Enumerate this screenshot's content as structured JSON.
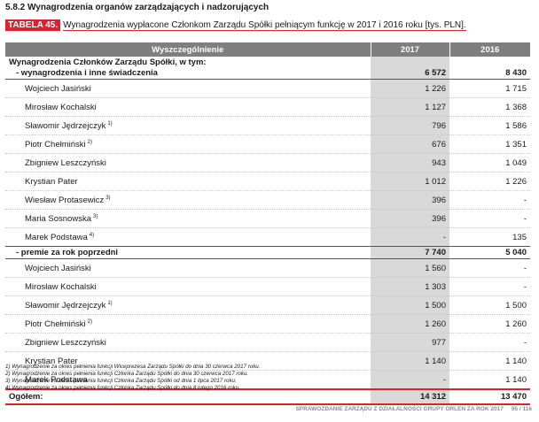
{
  "section_title": "5.8.2 Wynagrodzenia organów zarządzających i nadzorujących",
  "caption": {
    "tag": "TABELA 45.",
    "text": "Wynagrodzenia wypłacone Członkom Zarządu Spółki pełniącym funkcję w 2017 i 2016 roku [tys. PLN]."
  },
  "table": {
    "headers": [
      "Wyszczególnienie",
      "2017",
      "2016"
    ],
    "section_header": "Wynagrodzenia Członków Zarządu Spółki, w tym:",
    "group1": {
      "label": "- wynagrodzenia i inne świadczenia",
      "v2017": "6 572",
      "v2016": "8 430"
    },
    "group1_rows": [
      {
        "name": "Wojciech Jasiński",
        "sup": "",
        "v2017": "1 226",
        "v2016": "1 715"
      },
      {
        "name": "Mirosław Kochalski",
        "sup": "",
        "v2017": "1 127",
        "v2016": "1 368"
      },
      {
        "name": "Sławomir Jędrzejczyk",
        "sup": "1)",
        "v2017": "796",
        "v2016": "1 586"
      },
      {
        "name": "Piotr Chełmiński",
        "sup": "2)",
        "v2017": "676",
        "v2016": "1 351"
      },
      {
        "name": "Zbigniew Leszczyński",
        "sup": "",
        "v2017": "943",
        "v2016": "1 049"
      },
      {
        "name": "Krystian Pater",
        "sup": "",
        "v2017": "1 012",
        "v2016": "1 226"
      },
      {
        "name": "Wiesław Protasewicz",
        "sup": "3)",
        "v2017": "396",
        "v2016": "-"
      },
      {
        "name": "Maria Sosnowska",
        "sup": "3)",
        "v2017": "396",
        "v2016": "-"
      },
      {
        "name": "Marek Podstawa",
        "sup": "4)",
        "v2017": "-",
        "v2016": "135"
      }
    ],
    "group2": {
      "label": "- premie za rok poprzedni",
      "v2017": "7 740",
      "v2016": "5 040"
    },
    "group2_rows": [
      {
        "name": "Wojciech Jasiński",
        "sup": "",
        "v2017": "1 560",
        "v2016": "-"
      },
      {
        "name": "Mirosław Kochalski",
        "sup": "",
        "v2017": "1 303",
        "v2016": "-"
      },
      {
        "name": "Sławomir Jędrzejczyk",
        "sup": "1)",
        "v2017": "1 500",
        "v2016": "1 500"
      },
      {
        "name": "Piotr Chełmiński",
        "sup": "2)",
        "v2017": "1 260",
        "v2016": "1 260"
      },
      {
        "name": "Zbigniew Leszczyński",
        "sup": "",
        "v2017": "977",
        "v2016": "-"
      },
      {
        "name": "Krystian Pater",
        "sup": "",
        "v2017": "1 140",
        "v2016": "1 140"
      },
      {
        "name": "Marek Podstawa",
        "sup": "",
        "v2017": "-",
        "v2016": "1 140"
      }
    ],
    "total": {
      "label": "Ogółem:",
      "v2017": "14 312",
      "v2016": "13 470"
    }
  },
  "footnotes": [
    "1) Wynagrodzenie za okres pełnienia funkcji Wiceprezesa Zarządu Spółki do dnia 30 czerwca 2017 roku.",
    "2) Wynagrodzenie za okres pełnienia funkcji Członka Zarządu Spółki do dnia 30 czerwca 2017 roku.",
    "3) Wynagrodzenie za okres pełnienia funkcji Członka Zarządu Spółki od dnia 1 lipca 2017 roku.",
    "4) Wynagrodzenie za okres pełnienia funkcji Członka Zarządu Spółki do dnia 8 lutego 2016 roku."
  ],
  "footer": {
    "report": "SPRAWOZDANIE ZARZĄDU Z DZIAŁALNOŚCI GRUPY ORLEN ZA ROK 2017",
    "page": "95 / 116"
  },
  "colors": {
    "accent": "#d9232e",
    "header_bg": "#7f7f7f",
    "year_2017_bg": "#d9d9d9"
  }
}
